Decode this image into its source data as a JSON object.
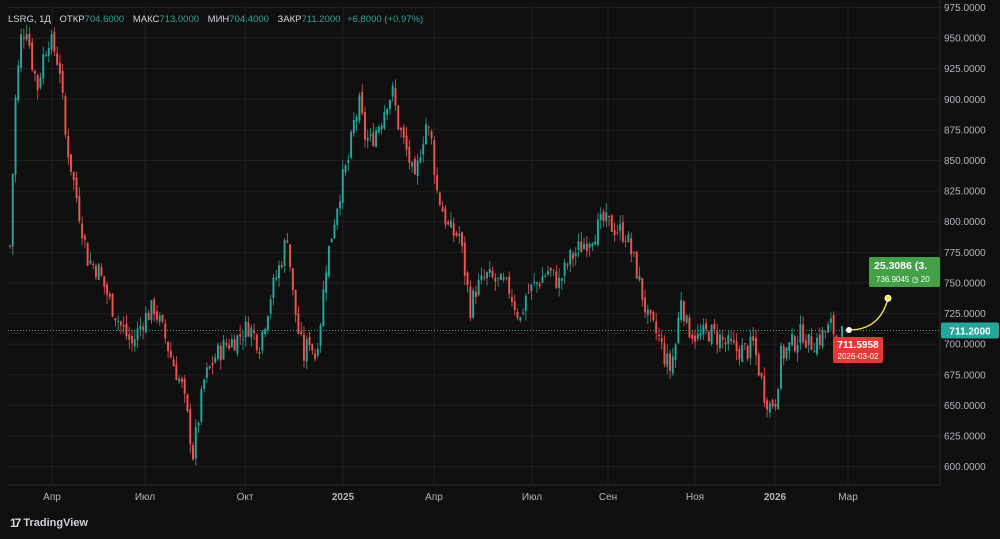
{
  "legend": {
    "symbol": "LSRG, 1Д",
    "open_label": "ОТКР",
    "open": "704.6000",
    "high_label": "МАКС",
    "high": "713.0000",
    "low_label": "МИН",
    "low": "704.4000",
    "close_label": "ЗАКР",
    "close": "711.2000",
    "change": "+6.8000 (+0.97%)"
  },
  "brand": "TradingView",
  "colors": {
    "up": "#26a69a",
    "down": "#ef5350",
    "background": "#0f0f0f",
    "grid": "#1f1f1f",
    "text": "#b2b5be",
    "prediction": "#ffe14d",
    "target": "#4caf50"
  },
  "chart_data": {
    "type": "candlestick",
    "x_ticks": [
      "Апр",
      "Июл",
      "Окт",
      "2025",
      "Апр",
      "Июл",
      "Сен",
      "Ноя",
      "2026",
      "Мар"
    ],
    "y_ticks": [
      "975.0000",
      "950.0000",
      "925.0000",
      "900.0000",
      "875.0000",
      "850.0000",
      "825.0000",
      "800.0000",
      "775.0000",
      "750.0000",
      "725.0000",
      "700.0000",
      "675.0000",
      "650.0000",
      "625.0000",
      "600.0000"
    ],
    "ylim": [
      585,
      977
    ],
    "last_price": 711.2,
    "last_price_label": "711.2000",
    "close_path": [
      [
        0,
        780
      ],
      [
        2,
        900
      ],
      [
        4,
        950
      ],
      [
        6,
        960
      ],
      [
        8,
        930
      ],
      [
        10,
        910
      ],
      [
        12,
        935
      ],
      [
        14,
        950
      ],
      [
        16,
        940
      ],
      [
        18,
        925
      ],
      [
        20,
        870
      ],
      [
        24,
        820
      ],
      [
        26,
        795
      ],
      [
        28,
        770
      ],
      [
        32,
        760
      ],
      [
        36,
        735
      ],
      [
        40,
        715
      ],
      [
        44,
        700
      ],
      [
        48,
        720
      ],
      [
        52,
        730
      ],
      [
        56,
        705
      ],
      [
        58,
        690
      ],
      [
        62,
        665
      ],
      [
        64,
        640
      ],
      [
        66,
        610
      ],
      [
        68,
        640
      ],
      [
        70,
        670
      ],
      [
        74,
        690
      ],
      [
        78,
        700
      ],
      [
        82,
        705
      ],
      [
        86,
        715
      ],
      [
        90,
        700
      ],
      [
        94,
        740
      ],
      [
        98,
        770
      ],
      [
        100,
        790
      ],
      [
        102,
        740
      ],
      [
        104,
        710
      ],
      [
        106,
        690
      ],
      [
        108,
        705
      ],
      [
        110,
        690
      ],
      [
        112,
        720
      ],
      [
        114,
        765
      ],
      [
        116,
        790
      ],
      [
        118,
        815
      ],
      [
        120,
        835
      ],
      [
        122,
        850
      ],
      [
        124,
        880
      ],
      [
        126,
        895
      ],
      [
        128,
        870
      ],
      [
        130,
        865
      ],
      [
        134,
        885
      ],
      [
        136,
        900
      ],
      [
        138,
        905
      ],
      [
        140,
        880
      ],
      [
        144,
        850
      ],
      [
        146,
        830
      ],
      [
        148,
        860
      ],
      [
        150,
        880
      ],
      [
        152,
        865
      ],
      [
        154,
        825
      ],
      [
        156,
        810
      ],
      [
        158,
        795
      ],
      [
        160,
        790
      ],
      [
        162,
        790
      ],
      [
        164,
        760
      ],
      [
        166,
        730
      ],
      [
        168,
        745
      ],
      [
        172,
        755
      ],
      [
        176,
        750
      ],
      [
        180,
        745
      ],
      [
        184,
        720
      ],
      [
        186,
        740
      ],
      [
        190,
        750
      ],
      [
        194,
        760
      ],
      [
        198,
        750
      ],
      [
        202,
        770
      ],
      [
        206,
        780
      ],
      [
        210,
        790
      ],
      [
        214,
        800
      ],
      [
        218,
        795
      ],
      [
        222,
        790
      ],
      [
        226,
        760
      ],
      [
        228,
        740
      ],
      [
        230,
        720
      ],
      [
        234,
        705
      ],
      [
        236,
        690
      ],
      [
        238,
        680
      ],
      [
        240,
        700
      ],
      [
        242,
        740
      ],
      [
        244,
        715
      ],
      [
        248,
        705
      ],
      [
        252,
        710
      ],
      [
        256,
        705
      ],
      [
        258,
        700
      ],
      [
        262,
        695
      ],
      [
        266,
        695
      ],
      [
        268,
        700
      ],
      [
        270,
        680
      ],
      [
        272,
        660
      ],
      [
        274,
        650
      ],
      [
        276,
        655
      ],
      [
        278,
        690
      ],
      [
        282,
        700
      ],
      [
        286,
        710
      ],
      [
        288,
        700
      ],
      [
        292,
        705
      ],
      [
        296,
        715
      ],
      [
        298,
        706
      ],
      [
        300,
        708
      ]
    ],
    "current_marker": {
      "value": "711.5958",
      "date": "2026-03-02"
    },
    "target_marker": {
      "value": "736.9045",
      "change": "25.3086 (3.",
      "extra": "◷ 20"
    }
  }
}
